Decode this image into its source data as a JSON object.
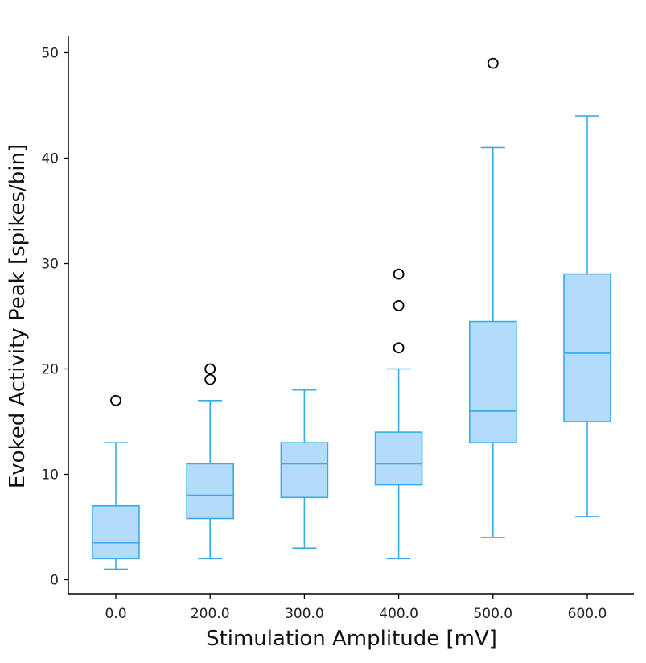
{
  "chart_data": {
    "type": "box",
    "xlabel": "Stimulation Amplitude [mV]",
    "ylabel": "Evoked Activity Peak [spikes/bin]",
    "categories": [
      "0.0",
      "200.0",
      "300.0",
      "400.0",
      "500.0",
      "600.0"
    ],
    "yticks": [
      0,
      10,
      20,
      30,
      40,
      50
    ],
    "ylim": [
      -1.3,
      51.5
    ],
    "grid": false,
    "boxes": [
      {
        "whisker_low": 1,
        "q1": 2,
        "median": 3.5,
        "q3": 7,
        "whisker_high": 13,
        "outliers": [
          17
        ]
      },
      {
        "whisker_low": 2,
        "q1": 5.8,
        "median": 8,
        "q3": 11,
        "whisker_high": 17,
        "outliers": [
          19,
          20
        ]
      },
      {
        "whisker_low": 3,
        "q1": 7.8,
        "median": 11,
        "q3": 13,
        "whisker_high": 18,
        "outliers": []
      },
      {
        "whisker_low": 2,
        "q1": 9,
        "median": 11,
        "q3": 14,
        "whisker_high": 20,
        "outliers": [
          22,
          26,
          29
        ]
      },
      {
        "whisker_low": 4,
        "q1": 13,
        "median": 16,
        "q3": 24.5,
        "whisker_high": 41,
        "outliers": [
          49
        ]
      },
      {
        "whisker_low": 6,
        "q1": 15,
        "median": 21.5,
        "q3": 29,
        "whisker_high": 44,
        "outliers": []
      }
    ],
    "colors": {
      "box_fill": "#b3dcfa",
      "box_edge": "#3aabe6",
      "outlier_edge": "#000000",
      "axis": "#000000"
    }
  }
}
